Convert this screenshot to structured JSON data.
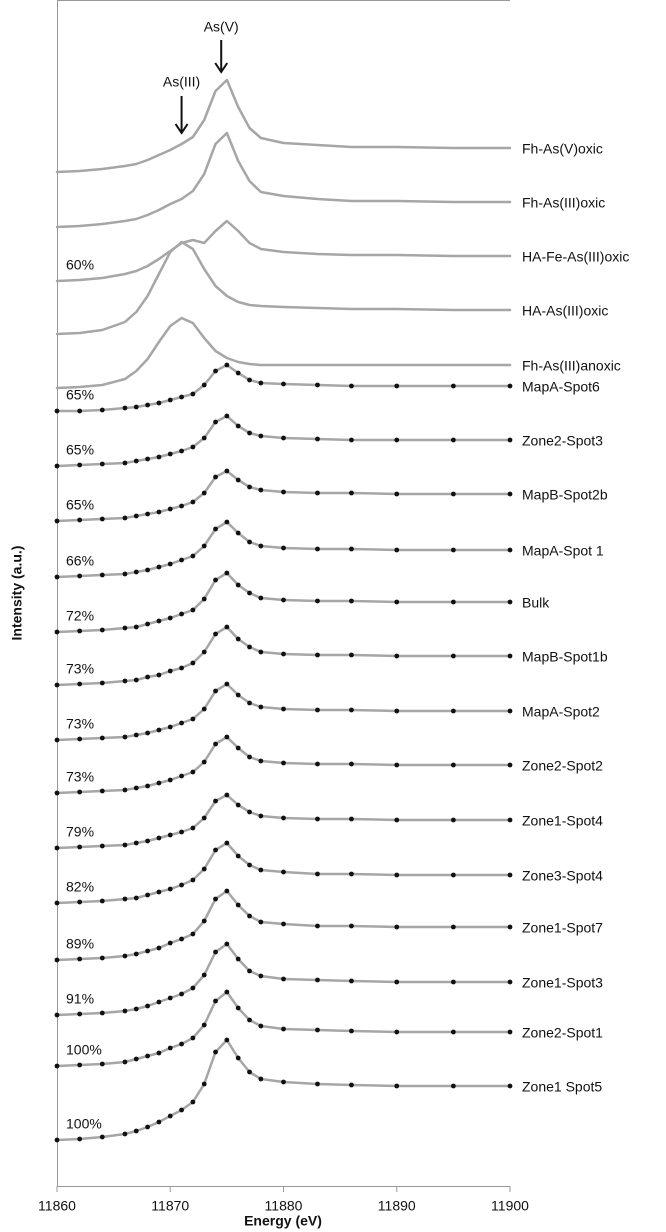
{
  "chart_data": {
    "type": "line",
    "xlabel": "Energy (eV)",
    "ylabel": "Intensity (a.u.)",
    "x": [
      11860,
      11862,
      11864,
      11866,
      11867,
      11868,
      11869,
      11870,
      11871,
      11872,
      11873,
      11874,
      11875,
      11876,
      11877,
      11878,
      11880,
      11883,
      11886,
      11890,
      11895,
      11900
    ],
    "xlim": [
      11860,
      11900
    ],
    "xticks": [
      11860,
      11870,
      11880,
      11890,
      11900
    ],
    "ylim": [
      0,
      1186
    ],
    "arrows": [
      {
        "label": "As(V)",
        "x": 11874.5
      },
      {
        "label": "As(III)",
        "x": 11871
      }
    ],
    "series": [
      {
        "name": "Fh-As(V)oxic",
        "color": "#a6a6a6",
        "markers": false,
        "values": [
          1014,
          1015,
          1017,
          1020,
          1022,
          1026,
          1031,
          1036,
          1042,
          1049,
          1066,
          1095,
          1106,
          1079,
          1058,
          1048,
          1043,
          1041,
          1039,
          1039,
          1038,
          1038
        ]
      },
      {
        "name": "Fh-As(III)oxic",
        "color": "#a6a6a6",
        "markers": false,
        "values": [
          959,
          960,
          962,
          965,
          967,
          971,
          976,
          982,
          987,
          995,
          1012,
          1042,
          1053,
          1025,
          1005,
          994,
          990,
          987,
          985,
          985,
          984,
          984
        ]
      },
      {
        "name": "HA-Fe-As(III)oxic",
        "color": "#a6a6a6",
        "markers": false,
        "annotation": "60%",
        "values": [
          905,
          906,
          908,
          912,
          915,
          920,
          927,
          935,
          943,
          946,
          943,
          955,
          965,
          955,
          943,
          937,
          934,
          932,
          931,
          931,
          930,
          930
        ]
      },
      {
        "name": "HA-As(III)oxic",
        "color": "#a6a6a6",
        "markers": false,
        "values": [
          852,
          853,
          856,
          864,
          874,
          890,
          912,
          934,
          944,
          937,
          917,
          900,
          890,
          884,
          881,
          880,
          879,
          878,
          877,
          877,
          876,
          876
        ]
      },
      {
        "name": "Fh-As(III)anoxic",
        "color": "#a6a6a6",
        "markers": false,
        "values": [
          798,
          799,
          801,
          807,
          815,
          827,
          844,
          860,
          868,
          863,
          848,
          835,
          828,
          824,
          822,
          821,
          821,
          821,
          821,
          821,
          821,
          821
        ]
      },
      {
        "name": "MapA-Spot6",
        "color": "#a6a6a6",
        "markers": true,
        "annotation": "65%",
        "values": [
          775,
          775,
          776,
          778,
          779,
          781,
          783,
          786,
          789,
          792,
          801,
          815,
          821,
          813,
          806,
          803,
          802,
          801,
          800,
          800,
          800,
          800
        ]
      },
      {
        "name": "Zone2-Spot3",
        "color": "#a6a6a6",
        "markers": true,
        "annotation": "65%",
        "values": [
          720,
          721,
          722,
          723,
          725,
          727,
          729,
          732,
          735,
          739,
          748,
          764,
          770,
          760,
          753,
          750,
          748,
          747,
          746,
          746,
          746,
          746
        ]
      },
      {
        "name": "MapB-Spot2b",
        "color": "#a6a6a6",
        "markers": true,
        "annotation": "65%",
        "values": [
          665,
          666,
          667,
          668,
          670,
          672,
          674,
          677,
          680,
          684,
          693,
          709,
          715,
          706,
          699,
          696,
          694,
          693,
          693,
          692,
          692,
          692
        ]
      },
      {
        "name": "MapA-Spot 1",
        "color": "#a6a6a6",
        "markers": true,
        "annotation": "66%",
        "values": [
          609,
          610,
          611,
          612,
          614,
          616,
          619,
          622,
          626,
          630,
          640,
          657,
          664,
          653,
          644,
          640,
          638,
          637,
          637,
          636,
          636,
          636
        ]
      },
      {
        "name": "Bulk",
        "color": "#a6a6a6",
        "markers": true,
        "annotation": "72%",
        "values": [
          554,
          555,
          556,
          558,
          559,
          562,
          565,
          568,
          572,
          576,
          587,
          606,
          613,
          601,
          593,
          588,
          586,
          585,
          585,
          584,
          584,
          584
        ]
      },
      {
        "name": "MapB-Spot1b",
        "color": "#a6a6a6",
        "markers": true,
        "annotation": "73%",
        "values": [
          501,
          502,
          503,
          505,
          506,
          509,
          511,
          515,
          518,
          523,
          534,
          552,
          559,
          547,
          539,
          534,
          532,
          531,
          531,
          530,
          530,
          530
        ]
      },
      {
        "name": "MapA-Spot2",
        "color": "#a6a6a6",
        "markers": true,
        "annotation": "73%",
        "values": [
          446,
          447,
          448,
          449,
          451,
          453,
          456,
          459,
          463,
          467,
          477,
          495,
          502,
          491,
          483,
          479,
          477,
          476,
          476,
          475,
          475,
          475
        ]
      },
      {
        "name": "Zone2-Spot2",
        "color": "#a6a6a6",
        "markers": true,
        "annotation": "73%",
        "values": [
          393,
          394,
          395,
          396,
          398,
          400,
          403,
          406,
          410,
          414,
          424,
          442,
          449,
          438,
          429,
          425,
          423,
          422,
          422,
          421,
          421,
          421
        ]
      },
      {
        "name": "Zone1-Spot4",
        "color": "#a6a6a6",
        "markers": true,
        "annotation": "79%",
        "values": [
          338,
          339,
          340,
          341,
          343,
          345,
          348,
          351,
          354,
          358,
          368,
          385,
          391,
          381,
          374,
          370,
          368,
          367,
          367,
          366,
          366,
          366
        ]
      },
      {
        "name": "Zone3-Spot4",
        "color": "#a6a6a6",
        "markers": true,
        "annotation": "82%",
        "values": [
          283,
          284,
          285,
          287,
          288,
          291,
          294,
          297,
          301,
          306,
          317,
          336,
          343,
          330,
          321,
          316,
          314,
          312,
          312,
          311,
          311,
          311
        ]
      },
      {
        "name": "Zone1-Spot7",
        "color": "#a6a6a6",
        "markers": true,
        "annotation": "89%",
        "values": [
          226,
          227,
          228,
          230,
          232,
          235,
          238,
          243,
          247,
          252,
          265,
          287,
          295,
          281,
          270,
          264,
          262,
          260,
          260,
          259,
          259,
          259
        ]
      },
      {
        "name": "Zone1-Spot3",
        "color": "#a6a6a6",
        "markers": true,
        "annotation": "91%",
        "values": [
          171,
          172,
          173,
          175,
          177,
          180,
          184,
          188,
          192,
          198,
          211,
          234,
          242,
          227,
          215,
          210,
          207,
          206,
          205,
          204,
          204,
          204
        ]
      },
      {
        "name": "Zone2-Spot1",
        "color": "#a6a6a6",
        "markers": true,
        "annotation": "100%",
        "values": [
          120,
          121,
          122,
          124,
          127,
          130,
          133,
          138,
          142,
          148,
          161,
          185,
          194,
          178,
          166,
          160,
          157,
          156,
          155,
          154,
          154,
          154
        ]
      },
      {
        "name": "Zone1 Spot5",
        "color": "#a6a6a6",
        "markers": true,
        "annotation": "100%",
        "values": [
          46,
          47,
          49,
          52,
          55,
          59,
          64,
          70,
          76,
          84,
          102,
          134,
          146,
          128,
          114,
          107,
          104,
          102,
          101,
          100,
          100,
          100
        ]
      }
    ],
    "marker_color": "#111111"
  }
}
